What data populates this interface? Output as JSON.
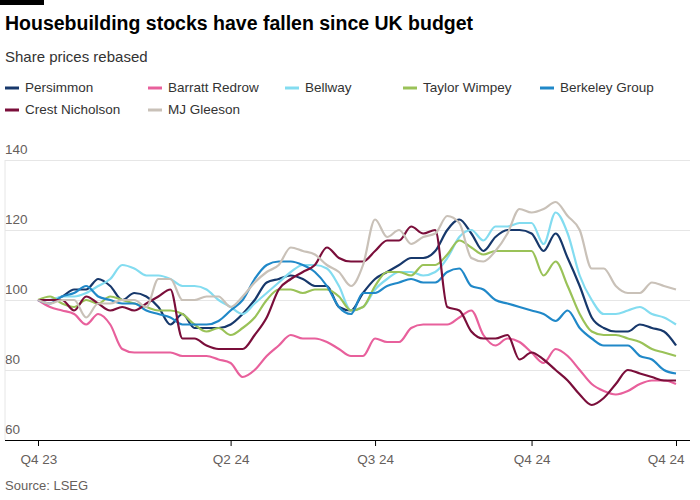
{
  "chart_data": {
    "type": "line",
    "title": "Housebuilding stocks have fallen since UK budget",
    "subtitle": "Share prices rebased",
    "source": "Source: LSEG",
    "categories": [
      "Q4 23",
      null,
      null,
      null,
      null,
      null,
      null,
      null,
      null,
      null,
      null,
      null,
      null,
      null,
      null,
      null,
      "Q2 24",
      null,
      null,
      null,
      null,
      null,
      null,
      null,
      null,
      null,
      null,
      null,
      "Q3 24",
      null,
      null,
      null,
      null,
      null,
      null,
      null,
      null,
      null,
      null,
      null,
      null,
      "Q4 24",
      null,
      null,
      null,
      null,
      null,
      null,
      null,
      null,
      null,
      null,
      null,
      "Q4 24"
    ],
    "series": [
      {
        "name": "Persimmon",
        "color": "#17386b",
        "values": [
          100,
          100,
          101,
          103,
          103,
          106,
          104,
          100,
          102,
          101,
          98,
          93,
          96,
          92,
          92,
          92,
          93,
          96,
          100,
          105,
          106,
          107,
          106,
          104,
          104,
          98,
          97,
          102,
          106,
          108,
          110,
          112,
          112,
          114,
          120,
          123,
          119,
          114,
          118,
          120,
          120,
          119,
          114,
          119,
          112,
          104,
          95,
          92,
          91,
          91,
          93,
          92,
          91,
          87
        ]
      },
      {
        "name": "Barratt Redrow",
        "color": "#e8609c",
        "values": [
          100,
          98,
          97,
          96,
          93,
          96,
          93,
          86,
          85,
          85,
          85,
          85,
          84,
          84,
          84,
          83,
          82,
          78,
          80,
          84,
          87,
          90,
          89,
          89,
          88,
          86,
          84,
          84,
          89,
          88,
          88,
          92,
          93,
          93,
          93,
          95,
          97,
          90,
          87,
          89,
          88,
          85,
          82,
          86,
          84,
          80,
          76,
          74,
          73,
          74,
          76,
          77,
          77,
          76
        ]
      },
      {
        "name": "Bellway",
        "color": "#83dcf0",
        "values": [
          100,
          100,
          101,
          101,
          102,
          104,
          106,
          110,
          109,
          107,
          107,
          106,
          104,
          104,
          103,
          100,
          98,
          96,
          99,
          102,
          105,
          108,
          110,
          110,
          109,
          104,
          97,
          98,
          103,
          106,
          108,
          108,
          107,
          108,
          112,
          118,
          120,
          117,
          121,
          121,
          122,
          122,
          116,
          125,
          119,
          107,
          100,
          96,
          96,
          97,
          98,
          96,
          95,
          93
        ]
      },
      {
        "name": "Taylor Wimpey",
        "color": "#9ac258",
        "values": [
          100,
          101,
          99,
          98,
          100,
          99,
          101,
          100,
          99,
          98,
          97,
          97,
          96,
          93,
          91,
          92,
          90,
          92,
          95,
          100,
          103,
          103,
          102,
          103,
          103,
          101,
          97,
          98,
          104,
          108,
          108,
          107,
          110,
          110,
          113,
          117,
          115,
          113,
          114,
          114,
          114,
          114,
          107,
          111,
          104,
          96,
          91,
          90,
          90,
          89,
          88,
          86,
          85,
          84
        ]
      },
      {
        "name": "Berkeley Group",
        "color": "#2088c8",
        "values": [
          100,
          99,
          101,
          102,
          104,
          101,
          100,
          99,
          99,
          97,
          96,
          95,
          93,
          93,
          93,
          94,
          97,
          100,
          106,
          110,
          111,
          111,
          110,
          108,
          104,
          98,
          96,
          102,
          102,
          104,
          105,
          106,
          105,
          105,
          108,
          109,
          104,
          103,
          100,
          99,
          98,
          97,
          96,
          94,
          97,
          92,
          89,
          87,
          87,
          87,
          84,
          83,
          80,
          79
        ]
      },
      {
        "name": "Crest Nicholson",
        "color": "#7a0e3a",
        "values": [
          100,
          100,
          100,
          97,
          101,
          99,
          97,
          98,
          97,
          99,
          101,
          103,
          89,
          89,
          87,
          86,
          86,
          86,
          90,
          95,
          103,
          106,
          108,
          110,
          115,
          112,
          111,
          111,
          114,
          117,
          117,
          121,
          119,
          120,
          98,
          97,
          91,
          89,
          89,
          90,
          83,
          85,
          83,
          80,
          77,
          73,
          70,
          72,
          76,
          80,
          79,
          78,
          77,
          77
        ]
      },
      {
        "name": "MJ Gleeson",
        "color": "#c9c1b8",
        "values": [
          100,
          99,
          100,
          100,
          95,
          99,
          99,
          100,
          100,
          98,
          106,
          106,
          100,
          100,
          101,
          101,
          98,
          101,
          105,
          108,
          110,
          115,
          114,
          113,
          110,
          108,
          104,
          110,
          123,
          118,
          120,
          116,
          118,
          119,
          124,
          122,
          112,
          111,
          114,
          119,
          126,
          125,
          126,
          128,
          124,
          120,
          109,
          109,
          104,
          102,
          102,
          105,
          104,
          103
        ]
      }
    ],
    "ylim": [
      60,
      140
    ],
    "yticks": [
      60,
      80,
      100,
      120,
      140
    ],
    "grid": true,
    "legend": "top"
  }
}
